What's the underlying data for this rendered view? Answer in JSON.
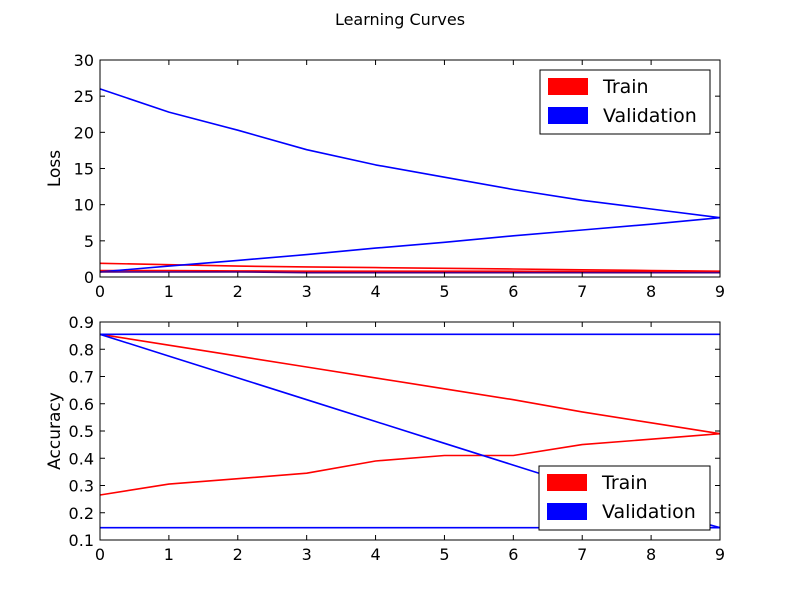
{
  "figure": {
    "title": "Learning Curves"
  },
  "chart_data": [
    {
      "type": "line",
      "ylabel": "Loss",
      "xlim": [
        0,
        9
      ],
      "ylim": [
        0,
        30
      ],
      "x_ticks": [
        0,
        1,
        2,
        3,
        4,
        5,
        6,
        7,
        8,
        9
      ],
      "y_ticks": [
        0,
        5,
        10,
        15,
        20,
        25,
        30
      ],
      "grid": false,
      "legend": {
        "position": "top-right",
        "entries": [
          "Train",
          "Validation"
        ]
      },
      "series": [
        {
          "name": "Train",
          "color": "#ff0000",
          "x": [
            0,
            1,
            2,
            3,
            4,
            5,
            6,
            7,
            8,
            9
          ],
          "y": [
            1.9,
            1.7,
            1.5,
            1.4,
            1.3,
            1.2,
            1.1,
            1.0,
            0.9,
            0.8
          ]
        },
        {
          "name": "Train",
          "color": "#ff0000",
          "x": [
            0,
            1,
            2,
            3,
            4,
            5,
            6,
            7,
            8,
            9
          ],
          "y": [
            0.9,
            0.9,
            0.85,
            0.8,
            0.8,
            0.8,
            0.8,
            0.75,
            0.75,
            0.75
          ]
        },
        {
          "name": "Validation",
          "color": "#0000ff",
          "x": [
            0,
            1,
            2,
            3,
            4,
            5,
            6,
            7,
            8,
            9
          ],
          "y": [
            26,
            22.8,
            20.3,
            17.6,
            15.5,
            13.8,
            12.1,
            10.6,
            9.4,
            8.2
          ]
        },
        {
          "name": "Validation",
          "color": "#0000ff",
          "x": [
            0,
            1,
            2,
            3,
            4,
            5,
            6,
            7,
            8,
            9
          ],
          "y": [
            0.7,
            1.5,
            2.3,
            3.1,
            4.0,
            4.8,
            5.7,
            6.5,
            7.3,
            8.2
          ]
        },
        {
          "name": "Validation",
          "color": "#4b0082",
          "x": [
            0,
            1,
            2,
            3,
            4,
            5,
            6,
            7,
            8,
            9
          ],
          "y": [
            0.7,
            0.7,
            0.7,
            0.6,
            0.6,
            0.6,
            0.6,
            0.6,
            0.6,
            0.6
          ]
        }
      ]
    },
    {
      "type": "line",
      "ylabel": "Accuracy",
      "xlim": [
        0,
        9
      ],
      "ylim": [
        0.1,
        0.9
      ],
      "x_ticks": [
        0,
        1,
        2,
        3,
        4,
        5,
        6,
        7,
        8,
        9
      ],
      "y_ticks": [
        0.1,
        0.2,
        0.3,
        0.4,
        0.5,
        0.6,
        0.7,
        0.8,
        0.9
      ],
      "grid": false,
      "legend": {
        "position": "bottom-right",
        "entries": [
          "Train",
          "Validation"
        ]
      },
      "series": [
        {
          "name": "Train",
          "color": "#ff0000",
          "x": [
            0,
            1,
            2,
            3,
            4,
            5,
            6,
            7,
            8,
            9
          ],
          "y": [
            0.855,
            0.815,
            0.775,
            0.735,
            0.695,
            0.655,
            0.615,
            0.57,
            0.53,
            0.49
          ]
        },
        {
          "name": "Train",
          "color": "#ff0000",
          "x": [
            0,
            1,
            2,
            3,
            4,
            5,
            6,
            7,
            8,
            9
          ],
          "y": [
            0.265,
            0.305,
            0.325,
            0.345,
            0.39,
            0.41,
            0.41,
            0.45,
            0.47,
            0.49
          ]
        },
        {
          "name": "Validation",
          "color": "#0000ff",
          "x": [
            0,
            1,
            2,
            3,
            4,
            5,
            6,
            7,
            8,
            9
          ],
          "y": [
            0.855,
            0.855,
            0.855,
            0.855,
            0.855,
            0.855,
            0.855,
            0.855,
            0.855,
            0.855
          ]
        },
        {
          "name": "Validation",
          "color": "#0000ff",
          "x": [
            0,
            1,
            2,
            3,
            4,
            5,
            6,
            7,
            8,
            9
          ],
          "y": [
            0.855,
            0.775,
            0.695,
            0.615,
            0.535,
            0.455,
            0.375,
            0.295,
            0.215,
            0.145
          ]
        },
        {
          "name": "Validation",
          "color": "#0000ff",
          "x": [
            0,
            1,
            2,
            3,
            4,
            5,
            6,
            7,
            8,
            9
          ],
          "y": [
            0.145,
            0.145,
            0.145,
            0.145,
            0.145,
            0.145,
            0.145,
            0.145,
            0.145,
            0.145
          ]
        }
      ]
    }
  ]
}
